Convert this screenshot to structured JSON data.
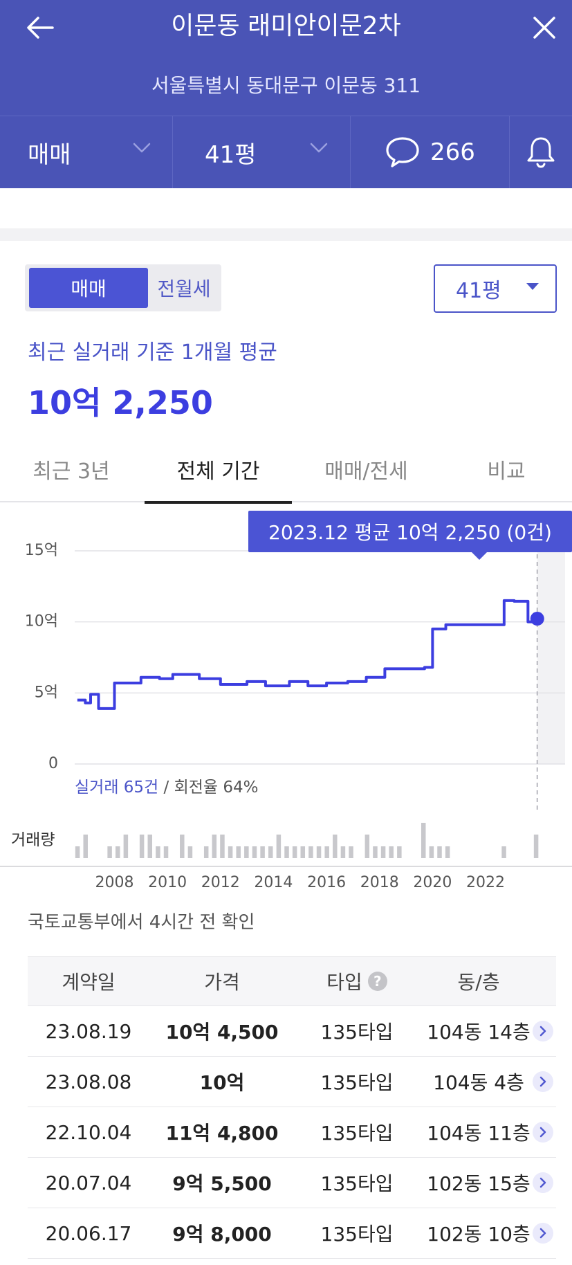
{
  "header": {
    "title": "이문동 래미안이문2차",
    "address": "서울특별시 동대문구 이문동 311",
    "trade_type": "매매",
    "size": "41평",
    "comment_count": "266",
    "bg_color": "#4a54b6"
  },
  "filters": {
    "trade_active": "매매",
    "trade_inactive": "전월세",
    "size": "41평"
  },
  "summary": {
    "caption": "최근 실거래 기준 1개월 평균",
    "value": "10억 2,250"
  },
  "period_tabs": [
    "최근 3년",
    "전체 기간",
    "매매/전세",
    "비교"
  ],
  "chart_data": {
    "type": "line",
    "ylim": [
      0,
      15
    ],
    "y_ticks": [
      "15억",
      "10억",
      "5억",
      "0"
    ],
    "x_ticks": [
      "2008",
      "2010",
      "2012",
      "2014",
      "2016",
      "2018",
      "2020",
      "2022"
    ],
    "series": [
      {
        "x": [
          2006.6,
          2006.9,
          2007.1,
          2007.4,
          2008.0,
          2008.5,
          2009.0,
          2009.7,
          2010.2,
          2011.2,
          2012.0,
          2013.0,
          2013.7,
          2014.6,
          2015.3,
          2016.0,
          2016.8,
          2017.5,
          2018.2,
          2019.7,
          2020.0,
          2020.5,
          2021.5,
          2022.1,
          2022.7,
          2023.08,
          2023.6,
          2023.95
        ],
        "values": [
          4.5,
          4.3,
          4.9,
          3.9,
          5.7,
          5.7,
          6.1,
          6.0,
          6.3,
          6.0,
          5.6,
          5.8,
          5.5,
          5.8,
          5.5,
          5.7,
          5.8,
          6.1,
          6.7,
          6.8,
          9.5,
          9.8,
          9.8,
          9.8,
          11.5,
          11.45,
          10.0,
          10.225
        ]
      }
    ],
    "volume": [
      1,
      2,
      0,
      0,
      1,
      1,
      2,
      0,
      2,
      2,
      1,
      1,
      0,
      2,
      1,
      0,
      1,
      2,
      2,
      1,
      1,
      1,
      1,
      1,
      1,
      2,
      1,
      1,
      1,
      1,
      1,
      1,
      2,
      1,
      1,
      0,
      2,
      1,
      1,
      1,
      1,
      0,
      0,
      3,
      1,
      1,
      1,
      0,
      0,
      0,
      0,
      0,
      0,
      1,
      0,
      0,
      0,
      2
    ],
    "highlight": {
      "label": "2023.12 평균 10억 2,250 (0건)",
      "x": 2023.95,
      "value": 10.225
    },
    "line_color": "#3c3ee0",
    "volume_label": "거래량",
    "stats_deals": "실거래 65건",
    "stats_rest": " / 회전율 64%"
  },
  "source_note": "국토교통부에서 4시간 전 확인",
  "table": {
    "headers": [
      "계약일",
      "가격",
      "타입",
      "동/층"
    ],
    "rows": [
      {
        "date": "23.08.19",
        "price": "10억 4,500",
        "type": "135타입",
        "unit": "104동 14층"
      },
      {
        "date": "23.08.08",
        "price": "10억",
        "type": "135타입",
        "unit": "104동 4층"
      },
      {
        "date": "22.10.04",
        "price": "11억 4,800",
        "type": "135타입",
        "unit": "104동 11층"
      },
      {
        "date": "20.07.04",
        "price": "9억 5,500",
        "type": "135타입",
        "unit": "102동 15층"
      },
      {
        "date": "20.06.17",
        "price": "9억 8,000",
        "type": "135타입",
        "unit": "102동 10층"
      }
    ]
  }
}
